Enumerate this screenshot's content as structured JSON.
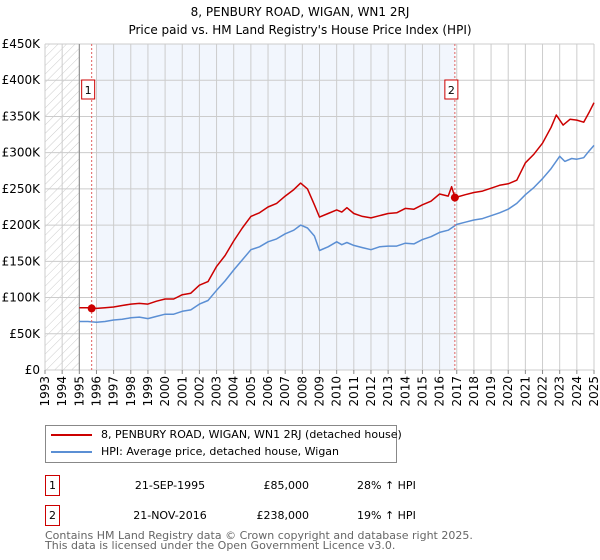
{
  "chart_data": {
    "type": "line",
    "title": "8, PENBURY ROAD, WIGAN, WN1 2RJ",
    "subtitle": "Price paid vs. HM Land Registry's House Price Index (HPI)",
    "xlabel": "",
    "ylabel": "",
    "xlim": [
      1993,
      2025
    ],
    "ylim": [
      0,
      450000
    ],
    "grid": true,
    "y_ticks": [
      0,
      50000,
      100000,
      150000,
      200000,
      250000,
      300000,
      350000,
      400000,
      450000
    ],
    "y_tick_labels": [
      "£0",
      "£50K",
      "£100K",
      "£150K",
      "£200K",
      "£250K",
      "£300K",
      "£350K",
      "£400K",
      "£450K"
    ],
    "x_ticks": [
      "1993",
      "1994",
      "1995",
      "1996",
      "1997",
      "1998",
      "1999",
      "2000",
      "2001",
      "2002",
      "2003",
      "2004",
      "2005",
      "2006",
      "2007",
      "2008",
      "2009",
      "2010",
      "2011",
      "2012",
      "2013",
      "2014",
      "2015",
      "2016",
      "2017",
      "2018",
      "2019",
      "2020",
      "2021",
      "2022",
      "2023",
      "2024",
      "2025"
    ],
    "series": [
      {
        "name": "8, PENBURY ROAD, WIGAN, WN1 2RJ (detached house)",
        "color": "#cc0000",
        "x": [
          1995.0,
          1995.5,
          1996.0,
          1996.5,
          1997.0,
          1997.5,
          1998.0,
          1998.5,
          1999.0,
          1999.5,
          2000.0,
          2000.5,
          2001.0,
          2001.5,
          2002.0,
          2002.5,
          2003.0,
          2003.5,
          2004.0,
          2004.5,
          2005.0,
          2005.5,
          2006.0,
          2006.5,
          2007.0,
          2007.5,
          2007.9,
          2008.3,
          2008.7,
          2009.0,
          2009.5,
          2010.0,
          2010.3,
          2010.6,
          2011.0,
          2011.5,
          2012.0,
          2012.5,
          2013.0,
          2013.5,
          2014.0,
          2014.5,
          2015.0,
          2015.5,
          2016.0,
          2016.5,
          2016.7,
          2016.9,
          2017.5,
          2018.0,
          2018.5,
          2019.0,
          2019.5,
          2020.0,
          2020.5,
          2021.0,
          2021.5,
          2022.0,
          2022.5,
          2022.8,
          2023.2,
          2023.6,
          2024.0,
          2024.4,
          2024.7,
          2025.0
        ],
        "y": [
          86000,
          86000,
          85000,
          86000,
          87000,
          89000,
          91000,
          92000,
          91000,
          95000,
          98000,
          98000,
          104000,
          106000,
          117000,
          122000,
          143000,
          158000,
          178000,
          196000,
          212000,
          217000,
          225000,
          230000,
          240000,
          249000,
          258000,
          250000,
          228000,
          211000,
          216000,
          221000,
          218000,
          224000,
          216000,
          212000,
          210000,
          213000,
          216000,
          217000,
          223000,
          222000,
          228000,
          233000,
          243000,
          240000,
          253000,
          238000,
          242000,
          245000,
          247000,
          251000,
          255000,
          257000,
          262000,
          286000,
          298000,
          313000,
          335000,
          352000,
          338000,
          346000,
          345000,
          342000,
          355000,
          369000
        ]
      },
      {
        "name": "HPI: Average price, detached house, Wigan",
        "color": "#5b8fd4",
        "x": [
          1995.0,
          1995.5,
          1996.0,
          1996.5,
          1997.0,
          1997.5,
          1998.0,
          1998.5,
          1999.0,
          1999.5,
          2000.0,
          2000.5,
          2001.0,
          2001.5,
          2002.0,
          2002.5,
          2003.0,
          2003.5,
          2004.0,
          2004.5,
          2005.0,
          2005.5,
          2006.0,
          2006.5,
          2007.0,
          2007.5,
          2007.9,
          2008.3,
          2008.7,
          2009.0,
          2009.5,
          2010.0,
          2010.3,
          2010.6,
          2011.0,
          2011.5,
          2012.0,
          2012.5,
          2013.0,
          2013.5,
          2014.0,
          2014.5,
          2015.0,
          2015.5,
          2016.0,
          2016.5,
          2017.0,
          2017.5,
          2018.0,
          2018.5,
          2019.0,
          2019.5,
          2020.0,
          2020.5,
          2021.0,
          2021.5,
          2022.0,
          2022.5,
          2023.0,
          2023.3,
          2023.7,
          2024.0,
          2024.4,
          2024.7,
          2025.0
        ],
        "y": [
          67000,
          67000,
          66000,
          67000,
          69000,
          70000,
          72000,
          73000,
          71000,
          74000,
          77000,
          77000,
          81000,
          83000,
          91000,
          96000,
          110000,
          123000,
          138000,
          152000,
          166000,
          170000,
          177000,
          181000,
          188000,
          193000,
          200000,
          196000,
          185000,
          165000,
          170000,
          177000,
          173000,
          176000,
          172000,
          169000,
          166000,
          170000,
          171000,
          171000,
          175000,
          174000,
          180000,
          184000,
          190000,
          193000,
          201000,
          204000,
          207000,
          209000,
          213000,
          217000,
          222000,
          230000,
          242000,
          252000,
          264000,
          278000,
          295000,
          288000,
          292000,
          291000,
          293000,
          302000,
          310000
        ]
      }
    ],
    "sales": [
      {
        "label": "1",
        "x": 1995.72,
        "y": 85000
      },
      {
        "label": "2",
        "x": 2016.89,
        "y": 238000
      }
    ]
  },
  "legend": {
    "items": [
      {
        "label": "8, PENBURY ROAD, WIGAN, WN1 2RJ (detached house)",
        "color": "#cc0000"
      },
      {
        "label": "HPI: Average price, detached house, Wigan",
        "color": "#5b8fd4"
      }
    ]
  },
  "sales_table": [
    {
      "num": "1",
      "date": "21-SEP-1995",
      "price": "£85,000",
      "hpi": "28% ↑ HPI"
    },
    {
      "num": "2",
      "date": "21-NOV-2016",
      "price": "£238,000",
      "hpi": "19% ↑ HPI"
    }
  ],
  "footer": {
    "line1": "Contains HM Land Registry data © Crown copyright and database right 2025.",
    "line2": "This data is licensed under the Open Government Licence v3.0."
  }
}
